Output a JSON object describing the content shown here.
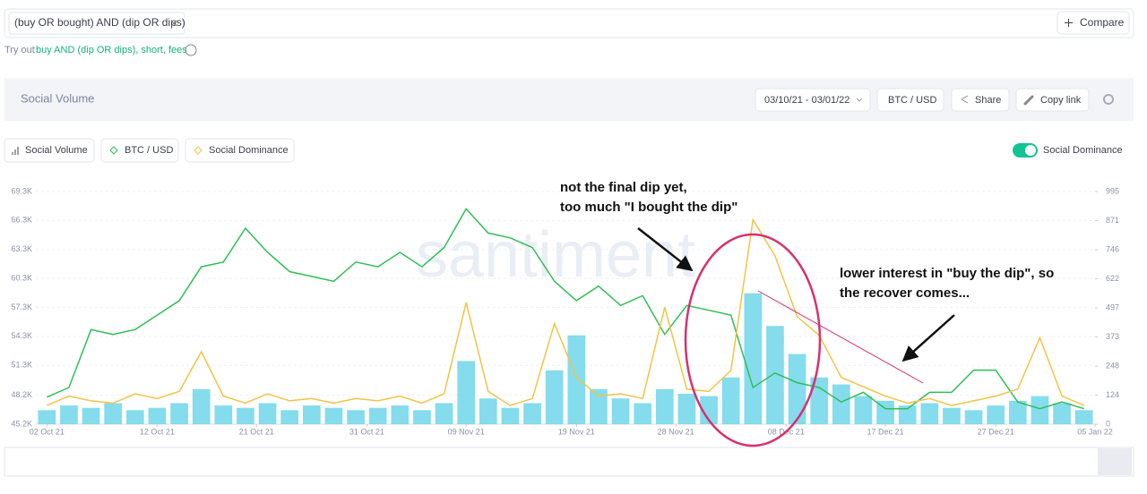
{
  "search": {
    "query": "(buy OR bought) AND (dip OR dips)",
    "compare": "Compare"
  },
  "suggestion": {
    "prefix": "Try out",
    "link": "buy AND (dip OR dips), short, fees"
  },
  "header": {
    "title": "Social Volume",
    "date_range": "03/10/21 - 03/01/22",
    "pair": "BTC / USD",
    "share": "Share",
    "copy_link": "Copy link"
  },
  "toggle": {
    "label": "Social Dominance",
    "on": true
  },
  "chart_data": {
    "type": "line",
    "watermark": "santiment",
    "x": [
      "2021-10-02",
      "2021-10-04",
      "2021-10-06",
      "2021-10-08",
      "2021-10-10",
      "2021-10-12",
      "2021-10-14",
      "2021-10-16",
      "2021-10-18",
      "2021-10-20",
      "2021-10-22",
      "2021-10-24",
      "2021-10-26",
      "2021-10-28",
      "2021-10-30",
      "2021-11-01",
      "2021-11-03",
      "2021-11-05",
      "2021-11-07",
      "2021-11-09",
      "2021-11-11",
      "2021-11-13",
      "2021-11-15",
      "2021-11-17",
      "2021-11-19",
      "2021-11-21",
      "2021-11-23",
      "2021-11-25",
      "2021-11-27",
      "2021-11-29",
      "2021-12-01",
      "2021-12-03",
      "2021-12-05",
      "2021-12-07",
      "2021-12-09",
      "2021-12-11",
      "2021-12-13",
      "2021-12-15",
      "2021-12-17",
      "2021-12-19",
      "2021-12-21",
      "2021-12-23",
      "2021-12-25",
      "2021-12-27",
      "2021-12-29",
      "2021-12-31",
      "2022-01-02",
      "2022-01-04"
    ],
    "xlim": [
      "2021-10-01",
      "2022-01-05"
    ],
    "xticks": [
      {
        "value": "2021-10-02",
        "label": "02 Oct 21"
      },
      {
        "value": "2021-10-12",
        "label": "12 Oct 21"
      },
      {
        "value": "2021-10-21",
        "label": "21 Oct 21"
      },
      {
        "value": "2021-10-31",
        "label": "31 Oct 21"
      },
      {
        "value": "2021-11-09",
        "label": "09 Nov 21"
      },
      {
        "value": "2021-11-19",
        "label": "19 Nov 21"
      },
      {
        "value": "2021-11-28",
        "label": "28 Nov 21"
      },
      {
        "value": "2021-12-08",
        "label": "08 Dec 21"
      },
      {
        "value": "2021-12-17",
        "label": "17 Dec 21"
      },
      {
        "value": "2021-12-27",
        "label": "27 Dec 21"
      },
      {
        "value": "2022-01-05",
        "label": "05 Jan 22"
      }
    ],
    "ylim": [
      45200,
      69300
    ],
    "yticks": [
      {
        "value": 45200,
        "label": "45.2K"
      },
      {
        "value": 48200,
        "label": "48.2K"
      },
      {
        "value": 51300,
        "label": "51.3K"
      },
      {
        "value": 54300,
        "label": "54.3K"
      },
      {
        "value": 57300,
        "label": "57.3K"
      },
      {
        "value": 60300,
        "label": "60.3K"
      },
      {
        "value": 63300,
        "label": "63.3K"
      },
      {
        "value": 66300,
        "label": "66.3K"
      },
      {
        "value": 69300,
        "label": "69.3K"
      }
    ],
    "y2lim": [
      0,
      995
    ],
    "y2ticks": [
      0,
      124,
      248,
      373,
      497,
      622,
      746,
      871,
      995
    ],
    "grid": true,
    "series": [
      {
        "name": "Social Volume",
        "kind": "bar",
        "axis": "y2",
        "color": "#6fd6ea",
        "values": [
          60,
          80,
          70,
          90,
          60,
          70,
          90,
          150,
          80,
          70,
          90,
          60,
          80,
          70,
          60,
          70,
          80,
          60,
          90,
          270,
          110,
          70,
          90,
          230,
          380,
          150,
          110,
          90,
          150,
          130,
          120,
          200,
          560,
          420,
          300,
          200,
          170,
          120,
          100,
          80,
          90,
          70,
          60,
          80,
          100,
          120,
          90,
          60
        ]
      },
      {
        "name": "BTC / USD",
        "kind": "line",
        "color": "#2fbf55",
        "values": [
          48000,
          49000,
          55000,
          54500,
          55000,
          56500,
          58000,
          61500,
          62000,
          65500,
          63000,
          61000,
          60500,
          60000,
          62000,
          61500,
          63000,
          61500,
          63500,
          67500,
          65000,
          64500,
          63500,
          60000,
          58000,
          59500,
          57500,
          58500,
          54500,
          57500,
          57000,
          56500,
          49000,
          50500,
          49500,
          49000,
          47500,
          48500,
          46800,
          46800,
          48500,
          48500,
          50800,
          50800,
          47500,
          46800,
          47500,
          46800
        ]
      },
      {
        "name": "Social Dominance",
        "kind": "line",
        "axis": "y2",
        "color": "#f3c344",
        "values": [
          80,
          120,
          100,
          90,
          130,
          110,
          140,
          310,
          120,
          90,
          130,
          100,
          110,
          90,
          110,
          100,
          120,
          90,
          130,
          520,
          140,
          80,
          110,
          430,
          200,
          120,
          130,
          110,
          500,
          150,
          140,
          230,
          875,
          720,
          460,
          380,
          200,
          160,
          120,
          90,
          110,
          80,
          100,
          120,
          150,
          370,
          120,
          80
        ]
      }
    ],
    "annotations": [
      "not the final dip yet,",
      "too much \"I bought the dip\"",
      "lower interest in \"buy the dip\", so",
      "the recover comes..."
    ]
  }
}
